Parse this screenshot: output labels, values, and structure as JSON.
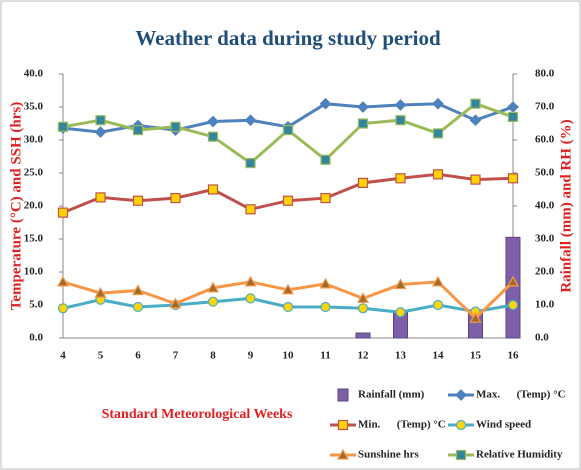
{
  "chart_data": {
    "type": "combo",
    "title": "Weather data during study period",
    "x_label": "Standard Meteorological Weeks",
    "y_label": "Temperature (°C) and SSH (hrs)",
    "y2_label": "Rainfall (mm) and RH (%)",
    "categories": [
      "4",
      "5",
      "6",
      "7",
      "8",
      "9",
      "10",
      "11",
      "12",
      "13",
      "14",
      "15",
      "16"
    ],
    "ylim": [
      0,
      40
    ],
    "yticks": [
      {
        "value": 0,
        "label": "0.0"
      },
      {
        "value": 5,
        "label": "5.0"
      },
      {
        "value": 10,
        "label": "10.0"
      },
      {
        "value": 15,
        "label": "15.0"
      },
      {
        "value": 20,
        "label": "20.0"
      },
      {
        "value": 25,
        "label": "25.0"
      },
      {
        "value": 30,
        "label": "30.0"
      },
      {
        "value": 35,
        "label": "35.0"
      },
      {
        "value": 40,
        "label": "40.0"
      }
    ],
    "y2lim": [
      0,
      80
    ],
    "y2ticks": [
      {
        "value": 0,
        "label": "0.0"
      },
      {
        "value": 10,
        "label": "10.0"
      },
      {
        "value": 20,
        "label": "20.0"
      },
      {
        "value": 30,
        "label": "30.0"
      },
      {
        "value": 40,
        "label": "40.0"
      },
      {
        "value": 50,
        "label": "50.0"
      },
      {
        "value": 60,
        "label": "60.0"
      },
      {
        "value": 70,
        "label": "70.0"
      },
      {
        "value": 80,
        "label": "80.0"
      }
    ],
    "series": [
      {
        "name": "Rainfall (mm)",
        "type": "bar",
        "axis": "y2",
        "color": "#7d60a8",
        "values": [
          null,
          null,
          null,
          null,
          null,
          null,
          null,
          null,
          1.5,
          8,
          null,
          8,
          30.5
        ]
      },
      {
        "name": "Max.      (Temp) °C",
        "type": "line",
        "marker": "diamond",
        "color": "#4f81bd",
        "marker_color": "#4f81bd",
        "values": [
          31.8,
          31.2,
          32.2,
          31.5,
          32.8,
          33,
          32,
          35.5,
          35,
          35.3,
          35.5,
          33,
          35
        ]
      },
      {
        "name": "Min.      (Temp) °C",
        "type": "line",
        "marker": "square",
        "color": "#c0504d",
        "marker_color": "#ffd400",
        "values": [
          19,
          21.3,
          20.8,
          21.2,
          22.5,
          19.5,
          20.8,
          21.2,
          23.5,
          24.2,
          24.8,
          24,
          24.2
        ]
      },
      {
        "name": "Wind speed",
        "type": "line",
        "marker": "circle",
        "color": "#4bacc6",
        "marker_color": "#ffd400",
        "values": [
          4.5,
          5.8,
          4.7,
          5,
          5.5,
          6,
          4.7,
          4.7,
          4.5,
          3.9,
          5,
          4,
          5
        ]
      },
      {
        "name": "Sunshine hrs",
        "type": "line",
        "marker": "triangle",
        "color": "#f79646",
        "marker_color": "#9e6b2b",
        "values": [
          8.5,
          6.8,
          7.2,
          5.2,
          7.6,
          8.5,
          7.3,
          8.2,
          6,
          8.1,
          8.5,
          3,
          8.5
        ]
      },
      {
        "name": "Relative Humidity",
        "type": "line",
        "axis": "y2",
        "marker": "square",
        "color": "#9bbb59",
        "marker_color": "#31859c",
        "values": [
          64,
          66,
          63,
          64,
          61,
          53,
          63,
          54,
          65,
          66,
          62,
          71,
          67
        ]
      }
    ]
  }
}
